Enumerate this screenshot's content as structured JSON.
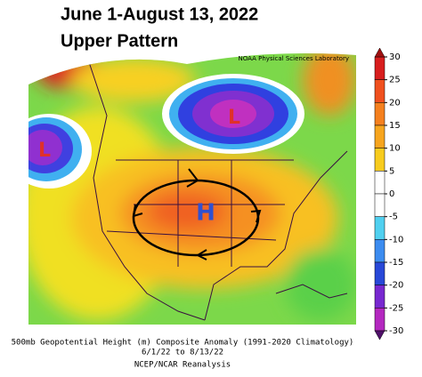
{
  "header": {
    "title": "June 1-August 13, 2022",
    "subtitle": "Upper Pattern"
  },
  "map": {
    "credit": "NOAA Physical Sciences Laboratory",
    "labels": [
      {
        "text": "L",
        "color": "#e0302a"
      },
      {
        "text": "L",
        "color": "#e0302a"
      },
      {
        "text": "H",
        "color": "#3050d0"
      }
    ]
  },
  "colorbar": {
    "lim": [
      -30,
      30
    ],
    "ticks": [
      30,
      25,
      20,
      15,
      10,
      5,
      0,
      -5,
      -10,
      -15,
      -20,
      -25,
      -30
    ],
    "colors": [
      "#d81e1e",
      "#f0501e",
      "#f5801e",
      "#f7a51e",
      "#f8cc1e",
      "#ffffff",
      "#ffffff",
      "#50d0f0",
      "#3c8cf0",
      "#2848d8",
      "#7828d0",
      "#b428c0"
    ],
    "end_colors": [
      "#a01010",
      "#50106a"
    ]
  },
  "caption": [
    "500mb Geopotential Height (m) Composite Anomaly (1991-2020 Climatology)",
    "6/1/22  to 8/13/22",
    "NCEP/NCAR Reanalysis"
  ]
}
